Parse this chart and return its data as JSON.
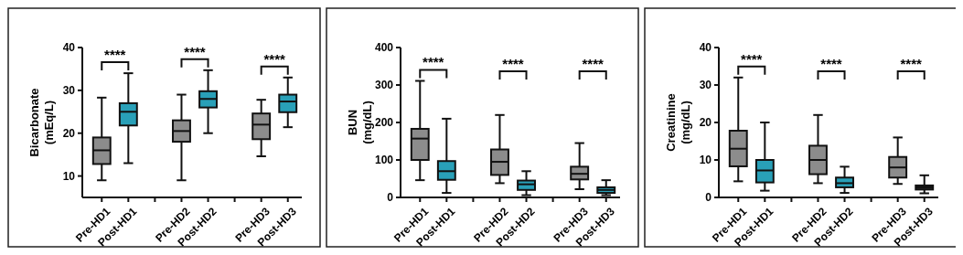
{
  "chart_data": [
    {
      "type": "box",
      "ylabel": "Bicarbonate (mEq/L)",
      "categories": [
        "Pre-HD1",
        "Post-HD1",
        null,
        "Pre-HD2",
        "Post-HD2",
        null,
        "Pre-HD3",
        "Post-HD3"
      ],
      "colors": [
        "#8c8c8c",
        "#29a0b8",
        null,
        "#8c8c8c",
        "#29a0b8",
        null,
        "#8c8c8c",
        "#29a0b8"
      ],
      "ylim": [
        5,
        40
      ],
      "yticks": [
        10,
        20,
        30,
        40
      ],
      "annotations": [
        "****",
        "****",
        "****"
      ],
      "boxes": [
        {
          "low": 9,
          "q1": 12.8,
          "median": 16,
          "q3": 19,
          "high": 28.3
        },
        {
          "low": 13,
          "q1": 21.8,
          "median": 25,
          "q3": 27,
          "high": 34
        },
        null,
        {
          "low": 9,
          "q1": 18,
          "median": 20.5,
          "q3": 23,
          "high": 29
        },
        {
          "low": 20,
          "q1": 26,
          "median": 28,
          "q3": 29.8,
          "high": 34.7
        },
        null,
        {
          "low": 14.6,
          "q1": 18.6,
          "median": 22,
          "q3": 24.6,
          "high": 27.8
        },
        {
          "low": 21.4,
          "q1": 24.9,
          "median": 27.4,
          "q3": 29,
          "high": 33
        }
      ]
    },
    {
      "type": "box",
      "ylabel": "BUN (mg/dL)",
      "categories": [
        "Pre-HD1",
        "Post-HD1",
        null,
        "Pre-HD2",
        "Post-HD2",
        null,
        "Pre-HD3",
        "Post-HD3"
      ],
      "colors": [
        "#8c8c8c",
        "#29a0b8",
        null,
        "#8c8c8c",
        "#29a0b8",
        null,
        "#8c8c8c",
        "#29a0b8"
      ],
      "ylim": [
        0,
        400
      ],
      "yticks": [
        0,
        100,
        200,
        300,
        400
      ],
      "annotations": [
        "****",
        "****",
        "****"
      ],
      "boxes": [
        {
          "low": 46,
          "q1": 100,
          "median": 157,
          "q3": 183,
          "high": 311
        },
        {
          "low": 12,
          "q1": 47,
          "median": 70,
          "q3": 97,
          "high": 210
        },
        null,
        {
          "low": 38,
          "q1": 60,
          "median": 95,
          "q3": 128,
          "high": 220
        },
        {
          "low": 6,
          "q1": 20,
          "median": 35,
          "q3": 45,
          "high": 70
        },
        null,
        {
          "low": 22,
          "q1": 48,
          "median": 63,
          "q3": 82,
          "high": 145
        },
        {
          "low": 6,
          "q1": 12,
          "median": 20,
          "q3": 27,
          "high": 46
        }
      ]
    },
    {
      "type": "box",
      "ylabel": "Creatinine (mg/dL)",
      "categories": [
        "Pre-HD1",
        "Post-HD1",
        null,
        "Pre-HD2",
        "Post-HD2",
        null,
        "Pre-HD3",
        "Post-HD3"
      ],
      "colors": [
        "#8c8c8c",
        "#29a0b8",
        null,
        "#8c8c8c",
        "#29a0b8",
        null,
        "#8c8c8c",
        "#303030"
      ],
      "ylim": [
        0,
        40
      ],
      "yticks": [
        0,
        10,
        20,
        30,
        40
      ],
      "annotations": [
        "****",
        "****",
        "****"
      ],
      "boxes": [
        {
          "low": 4.3,
          "q1": 8.3,
          "median": 13,
          "q3": 17.8,
          "high": 32
        },
        {
          "low": 1.8,
          "q1": 4,
          "median": 7.2,
          "q3": 10,
          "high": 20
        },
        null,
        {
          "low": 3.8,
          "q1": 6.2,
          "median": 10,
          "q3": 13.8,
          "high": 22
        },
        {
          "low": 1.2,
          "q1": 2.7,
          "median": 3.8,
          "q3": 5.3,
          "high": 8.2
        },
        null,
        {
          "low": 3.6,
          "q1": 5.3,
          "median": 8,
          "q3": 10.8,
          "high": 16
        },
        {
          "low": 1.1,
          "q1": 2.1,
          "median": 2.7,
          "q3": 3.2,
          "high": 5.9
        }
      ]
    }
  ]
}
